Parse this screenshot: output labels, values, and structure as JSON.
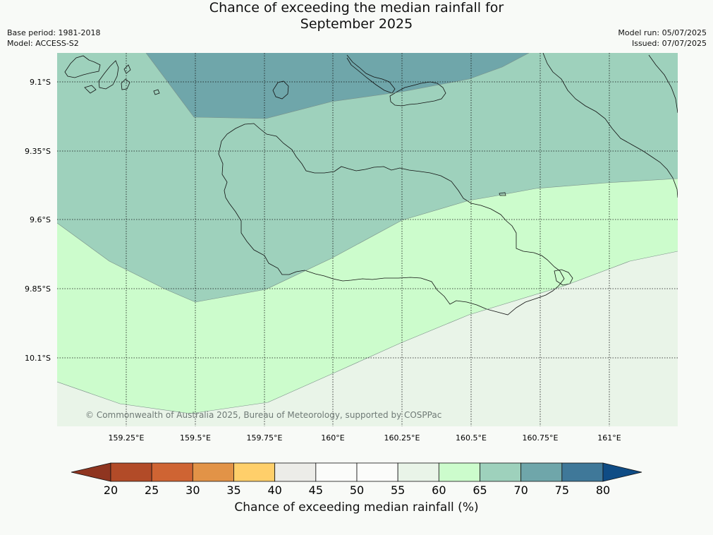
{
  "title": {
    "line1": "Chance of exceeding the median rainfall for",
    "line2": "September 2025"
  },
  "meta_left": {
    "base_period": "Base period: 1981-2018",
    "model": "Model: ACCESS-S2"
  },
  "meta_right": {
    "model_run": "Model run: 05/07/2025",
    "issued": "Issued: 07/07/2025"
  },
  "map": {
    "lat_ticks": [
      "9.1°S",
      "9.35°S",
      "9.6°S",
      "9.85°S",
      "10.1°S"
    ],
    "lon_ticks": [
      "159.25°E",
      "159.5°E",
      "159.75°E",
      "160°E",
      "160.25°E",
      "160.5°E",
      "160.75°E",
      "161°E"
    ],
    "copyright": "© Commonwealth of Australia 2025, Bureau of Meteorology, supported by COSPPac",
    "zone_colors": {
      "50-55": "#e9f4e8",
      "55-60": "#ccfccc",
      "60-65": "#9ed1bc",
      "65-70": "#6fa6aa"
    }
  },
  "legend": {
    "title": "Chance of exceeding median rainfall (%)",
    "labels": [
      "20",
      "25",
      "30",
      "35",
      "40",
      "45",
      "50",
      "55",
      "60",
      "65",
      "70",
      "75",
      "80"
    ],
    "low_extension_color": "#8f3520",
    "high_extension_color": "#0f4c85",
    "colors": [
      "#b24b28",
      "#cf6433",
      "#e29347",
      "#ffcf6a",
      "#ecece8",
      "#fbfcfa",
      "#fbfcfa",
      "#e9f4e8",
      "#ccfccc",
      "#9ed1bc",
      "#6fa6aa",
      "#3f7899"
    ]
  }
}
